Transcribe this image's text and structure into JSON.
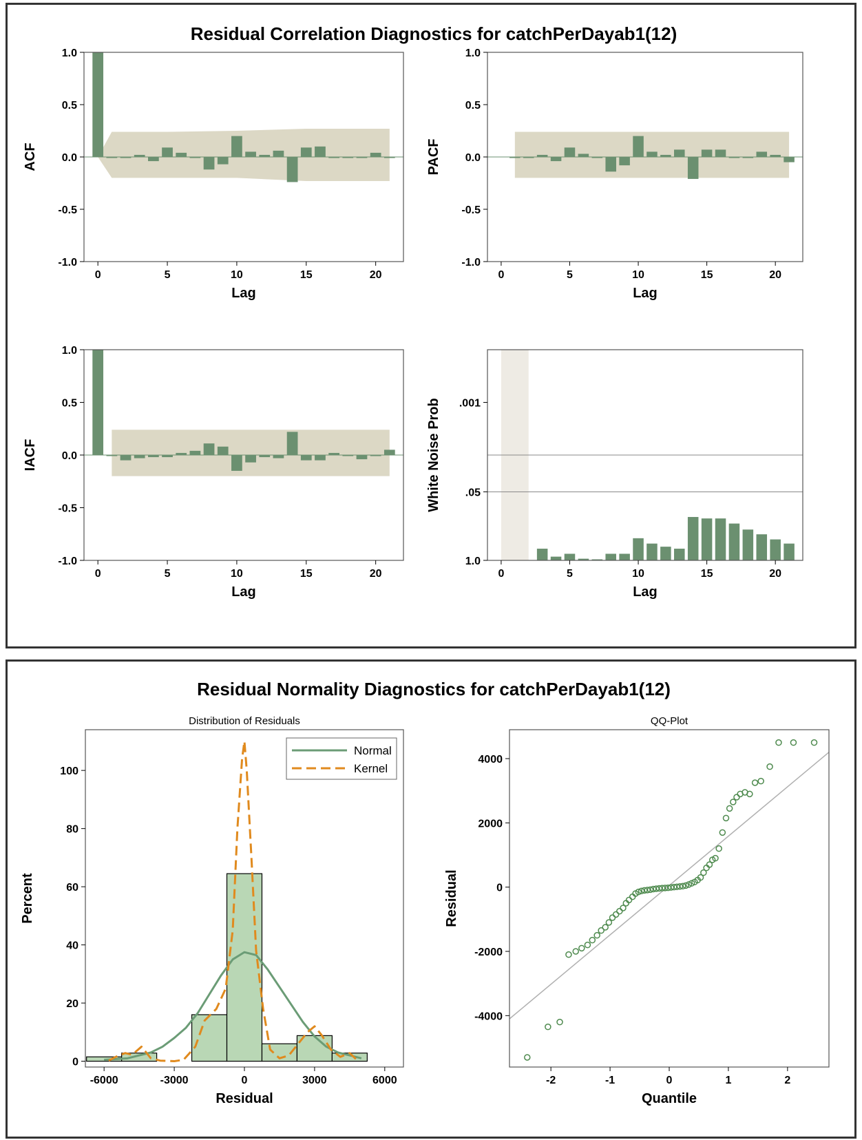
{
  "titles": {
    "correlation": "Residual Correlation Diagnostics for catchPerDayab1(12)",
    "normality": "Residual Normality Diagnostics for catchPerDayab1(12)"
  },
  "colors": {
    "bar": "#6B9070",
    "band": "#DCD8C5",
    "band_light": "#EEEBE4",
    "hist_fill": "#B9D7B5",
    "normal_line": "#6B9C76",
    "kernel_line": "#E08A1E",
    "ref_line": "#B0B0B0",
    "qq_marker": "#4E8A4E"
  },
  "chart_data": [
    {
      "id": "acf",
      "type": "bar",
      "xlabel": "Lag",
      "ylabel": "ACF",
      "xlim": [
        -1,
        22
      ],
      "ylim": [
        -1,
        1
      ],
      "xticks": [
        "0",
        "5",
        "10",
        "15",
        "20"
      ],
      "xtick_values": [
        0,
        5,
        10,
        15,
        20
      ],
      "yticks": [
        "-1.0",
        "-0.5",
        "0.0",
        "0.5",
        "1.0"
      ],
      "ytick_values": [
        -1,
        -0.5,
        0,
        0.5,
        1
      ],
      "lags": [
        0,
        1,
        2,
        3,
        4,
        5,
        6,
        7,
        8,
        9,
        10,
        11,
        12,
        13,
        14,
        15,
        16,
        17,
        18,
        19,
        20,
        21
      ],
      "values": [
        1.0,
        0.0,
        -0.01,
        0.02,
        -0.04,
        0.09,
        0.04,
        -0.01,
        -0.12,
        -0.07,
        0.2,
        0.05,
        0.02,
        0.06,
        -0.24,
        0.09,
        0.1,
        -0.01,
        -0.01,
        -0.01,
        0.04,
        -0.01
      ],
      "band_lags": [
        0,
        1,
        5,
        10,
        15,
        21
      ],
      "band_upper": [
        0.0,
        0.24,
        0.24,
        0.25,
        0.27,
        0.27
      ],
      "band_lower": [
        0.0,
        -0.2,
        -0.2,
        -0.2,
        -0.23,
        -0.23
      ]
    },
    {
      "id": "pacf",
      "type": "bar",
      "xlabel": "Lag",
      "ylabel": "PACF",
      "xlim": [
        -1,
        22
      ],
      "ylim": [
        -1,
        1
      ],
      "xticks": [
        "0",
        "5",
        "10",
        "15",
        "20"
      ],
      "xtick_values": [
        0,
        5,
        10,
        15,
        20
      ],
      "yticks": [
        "-1.0",
        "-0.5",
        "0.0",
        "0.5",
        "1.0"
      ],
      "ytick_values": [
        -1,
        -0.5,
        0,
        0.5,
        1
      ],
      "lags": [
        1,
        2,
        3,
        4,
        5,
        6,
        7,
        8,
        9,
        10,
        11,
        12,
        13,
        14,
        15,
        16,
        17,
        18,
        19,
        20,
        21
      ],
      "values": [
        0.0,
        -0.01,
        0.02,
        -0.04,
        0.09,
        0.03,
        -0.01,
        -0.14,
        -0.08,
        0.2,
        0.05,
        0.02,
        0.07,
        -0.21,
        0.07,
        0.07,
        -0.01,
        -0.01,
        0.05,
        0.02,
        -0.05
      ],
      "band_lags": [
        1,
        21
      ],
      "band_upper": [
        0.24,
        0.24
      ],
      "band_lower": [
        -0.2,
        -0.2
      ]
    },
    {
      "id": "iacf",
      "type": "bar",
      "xlabel": "Lag",
      "ylabel": "IACF",
      "xlim": [
        -1,
        22
      ],
      "ylim": [
        -1,
        1
      ],
      "xticks": [
        "0",
        "5",
        "10",
        "15",
        "20"
      ],
      "xtick_values": [
        0,
        5,
        10,
        15,
        20
      ],
      "yticks": [
        "-1.0",
        "-0.5",
        "0.0",
        "0.5",
        "1.0"
      ],
      "ytick_values": [
        -1,
        -0.5,
        0,
        0.5,
        1
      ],
      "lags": [
        0,
        1,
        2,
        3,
        4,
        5,
        6,
        7,
        8,
        9,
        10,
        11,
        12,
        13,
        14,
        15,
        16,
        17,
        18,
        19,
        20,
        21
      ],
      "values": [
        1.0,
        0.0,
        -0.05,
        -0.03,
        -0.02,
        -0.02,
        0.02,
        0.04,
        0.11,
        0.08,
        -0.15,
        -0.07,
        -0.02,
        -0.03,
        0.22,
        -0.05,
        -0.05,
        0.02,
        0.0,
        -0.04,
        -0.01,
        0.05
      ],
      "band_lags": [
        1,
        21
      ],
      "band_upper": [
        0.24,
        0.24
      ],
      "band_lower": [
        -0.2,
        -0.2
      ]
    },
    {
      "id": "white_noise",
      "type": "bar",
      "xlabel": "Lag",
      "ylabel": "White Noise Prob",
      "yscale": "log (inverted)",
      "xlim": [
        -1,
        22
      ],
      "ylim": [
        1.0,
        0.0001
      ],
      "xticks": [
        "0",
        "5",
        "10",
        "15",
        "20"
      ],
      "xtick_values": [
        0,
        5,
        10,
        15,
        20
      ],
      "yticks": [
        "1.0",
        ".05",
        ".001"
      ],
      "ytick_values": [
        1.0,
        0.05,
        0.001
      ],
      "reference_lines": [
        0.05,
        0.01
      ],
      "lags": [
        3,
        4,
        5,
        6,
        7,
        8,
        9,
        10,
        11,
        12,
        13,
        14,
        15,
        16,
        17,
        18,
        19,
        20,
        21
      ],
      "values": [
        0.6,
        0.85,
        0.75,
        0.93,
        1.0,
        0.75,
        0.75,
        0.38,
        0.48,
        0.55,
        0.6,
        0.15,
        0.16,
        0.16,
        0.2,
        0.26,
        0.32,
        0.4,
        0.48
      ],
      "shaded_lag_range": [
        0,
        2
      ]
    },
    {
      "id": "distribution",
      "type": "bar",
      "title": "Distribution of Residuals",
      "xlabel": "Residual",
      "ylabel": "Percent",
      "xlim": [
        -6800,
        6800
      ],
      "ylim": [
        -2,
        114
      ],
      "xticks": [
        "-6000",
        "-3000",
        "0",
        "3000",
        "6000"
      ],
      "xtick_values": [
        -6000,
        -3000,
        0,
        3000,
        6000
      ],
      "yticks": [
        "0",
        "20",
        "40",
        "60",
        "80",
        "100"
      ],
      "ytick_values": [
        0,
        20,
        40,
        60,
        80,
        100
      ],
      "bins": [
        [
          -6750,
          -5250
        ],
        [
          -5250,
          -3750
        ],
        [
          -3750,
          -2250
        ],
        [
          -2250,
          -750
        ],
        [
          -750,
          750
        ],
        [
          750,
          2250
        ],
        [
          2250,
          3750
        ],
        [
          3750,
          5250
        ]
      ],
      "values": [
        1.5,
        2.8,
        0,
        16,
        64.5,
        6,
        8.8,
        2.8
      ],
      "legend_position": "top-right",
      "series": [
        {
          "name": "Normal",
          "x": [
            -6000,
            -5000,
            -4000,
            -3500,
            -3000,
            -2500,
            -2000,
            -1500,
            -1000,
            -500,
            0,
            500,
            1000,
            1500,
            2000,
            2500,
            3000,
            3500,
            4000,
            5000
          ],
          "y": [
            0.5,
            1.0,
            3.0,
            5.0,
            8.0,
            11.5,
            16.5,
            23.0,
            29.5,
            35.0,
            37.5,
            36.5,
            31.5,
            25.5,
            19.5,
            13.5,
            8.5,
            5.0,
            3.0,
            1.0
          ]
        },
        {
          "name": "Kernel",
          "x": [
            -5800,
            -5500,
            -5100,
            -4800,
            -4400,
            -4000,
            -3600,
            -3000,
            -2600,
            -2100,
            -1700,
            -1200,
            -800,
            -500,
            -300,
            -100,
            0,
            100,
            300,
            500,
            800,
            1100,
            1500,
            1900,
            2300,
            2700,
            3000,
            3300,
            3700,
            4100,
            4500,
            4800
          ],
          "y": [
            0.2,
            1.5,
            2.8,
            2.2,
            5.0,
            1.0,
            0.2,
            0,
            0.5,
            5.0,
            14.0,
            18.0,
            25.0,
            45.0,
            80.0,
            104.0,
            110.0,
            100.0,
            70.0,
            38.0,
            18.0,
            4.0,
            1.0,
            2.0,
            6.0,
            10.0,
            12.0,
            9.0,
            4.0,
            1.5,
            2.8,
            0.5
          ]
        }
      ]
    },
    {
      "id": "qq_plot",
      "type": "scatter",
      "title": "QQ-Plot",
      "xlabel": "Quantile",
      "ylabel": "Residual",
      "xlim": [
        -2.7,
        2.7
      ],
      "ylim": [
        -5600,
        4900
      ],
      "xticks": [
        "-2",
        "-1",
        "0",
        "1",
        "2"
      ],
      "xtick_values": [
        -2,
        -1,
        0,
        1,
        2
      ],
      "yticks": [
        "-4000",
        "-2000",
        "0",
        "2000",
        "4000"
      ],
      "ytick_values": [
        -4000,
        -2000,
        0,
        2000,
        4000
      ],
      "reference_line": {
        "x": [
          -2.7,
          2.7
        ],
        "y": [
          -4100,
          4200
        ]
      },
      "points": {
        "x": [
          -2.4,
          -2.05,
          -1.85,
          -1.7,
          -1.58,
          -1.48,
          -1.38,
          -1.3,
          -1.22,
          -1.15,
          -1.08,
          -1.02,
          -0.96,
          -0.9,
          -0.84,
          -0.78,
          -0.73,
          -0.68,
          -0.62,
          -0.57,
          -0.52,
          -0.47,
          -0.42,
          -0.37,
          -0.32,
          -0.27,
          -0.22,
          -0.17,
          -0.12,
          -0.07,
          -0.02,
          0.03,
          0.08,
          0.13,
          0.18,
          0.23,
          0.28,
          0.33,
          0.38,
          0.43,
          0.48,
          0.53,
          0.58,
          0.63,
          0.68,
          0.73,
          0.78,
          0.84,
          0.9,
          0.96,
          1.02,
          1.08,
          1.14,
          1.2,
          1.28,
          1.36,
          1.45,
          1.55,
          1.7,
          1.85,
          2.1,
          2.45
        ],
        "y": [
          -5300,
          -4350,
          -4200,
          -2100,
          -2000,
          -1900,
          -1800,
          -1650,
          -1500,
          -1350,
          -1250,
          -1100,
          -950,
          -850,
          -750,
          -650,
          -500,
          -400,
          -300,
          -200,
          -150,
          -120,
          -100,
          -90,
          -80,
          -60,
          -50,
          -40,
          -30,
          -25,
          -20,
          -10,
          0,
          10,
          20,
          30,
          50,
          80,
          120,
          160,
          220,
          300,
          450,
          600,
          700,
          850,
          900,
          1200,
          1700,
          2150,
          2450,
          2650,
          2800,
          2900,
          2950,
          2900,
          3250,
          3300,
          3750,
          4500,
          4500,
          4500
        ]
      }
    }
  ]
}
